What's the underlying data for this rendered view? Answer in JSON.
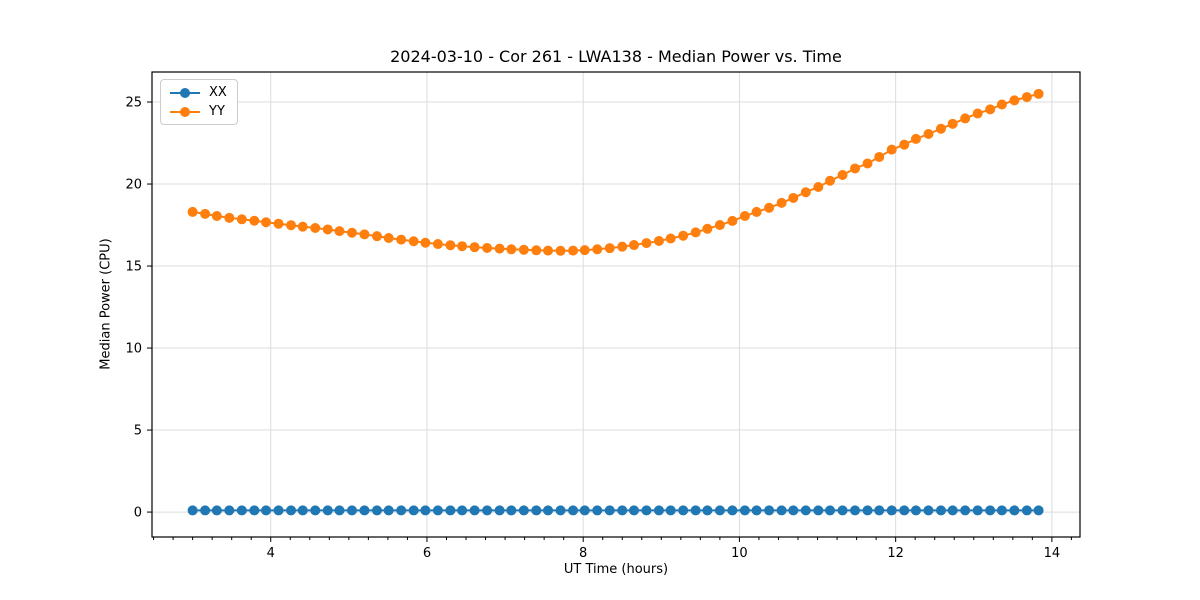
{
  "chart_data": {
    "type": "line",
    "title": "2024-03-10 - Cor 261 - LWA138 - Median Power vs. Time",
    "xlabel": "UT Time (hours)",
    "ylabel": "Median Power (CPU)",
    "legend": {
      "position": "upper left",
      "entries": [
        "XX",
        "YY"
      ]
    },
    "axes": {
      "xlim": [
        2.48,
        14.36
      ],
      "ylim": [
        -1.52,
        26.83
      ],
      "xticks": [
        4,
        6,
        8,
        10,
        12,
        14
      ],
      "yticks": [
        0,
        5,
        10,
        15,
        20,
        25
      ],
      "x_minor_step": 0.25,
      "grid": true
    },
    "x": [
      3.0,
      3.16,
      3.31,
      3.47,
      3.63,
      3.79,
      3.94,
      4.1,
      4.26,
      4.41,
      4.57,
      4.73,
      4.88,
      5.04,
      5.2,
      5.36,
      5.51,
      5.67,
      5.83,
      5.98,
      6.14,
      6.3,
      6.45,
      6.61,
      6.77,
      6.93,
      7.08,
      7.24,
      7.4,
      7.55,
      7.71,
      7.87,
      8.02,
      8.18,
      8.34,
      8.5,
      8.65,
      8.81,
      8.97,
      9.12,
      9.28,
      9.44,
      9.59,
      9.75,
      9.91,
      10.07,
      10.22,
      10.38,
      10.54,
      10.69,
      10.85,
      11.01,
      11.16,
      11.32,
      11.48,
      11.64,
      11.79,
      11.95,
      12.11,
      12.26,
      12.42,
      12.58,
      12.73,
      12.89,
      13.05,
      13.21,
      13.36,
      13.52,
      13.68,
      13.83
    ],
    "series": [
      {
        "name": "XX",
        "color": "#1f77b4",
        "values": [
          0.1,
          0.1,
          0.1,
          0.1,
          0.1,
          0.1,
          0.1,
          0.1,
          0.1,
          0.1,
          0.1,
          0.1,
          0.1,
          0.1,
          0.1,
          0.1,
          0.1,
          0.1,
          0.1,
          0.1,
          0.1,
          0.1,
          0.1,
          0.1,
          0.1,
          0.1,
          0.1,
          0.1,
          0.1,
          0.1,
          0.1,
          0.1,
          0.1,
          0.1,
          0.1,
          0.1,
          0.1,
          0.1,
          0.1,
          0.1,
          0.1,
          0.1,
          0.1,
          0.1,
          0.1,
          0.1,
          0.1,
          0.1,
          0.1,
          0.1,
          0.1,
          0.1,
          0.1,
          0.1,
          0.1,
          0.1,
          0.1,
          0.1,
          0.1,
          0.1,
          0.1,
          0.1,
          0.1,
          0.1,
          0.1,
          0.1,
          0.1,
          0.1,
          0.1,
          0.1
        ]
      },
      {
        "name": "YY",
        "color": "#ff7f0e",
        "values": [
          18.3,
          18.18,
          18.05,
          17.94,
          17.85,
          17.76,
          17.67,
          17.58,
          17.49,
          17.4,
          17.32,
          17.23,
          17.13,
          17.03,
          16.93,
          16.82,
          16.71,
          16.61,
          16.51,
          16.42,
          16.34,
          16.27,
          16.21,
          16.15,
          16.1,
          16.06,
          16.02,
          15.99,
          15.96,
          15.94,
          15.93,
          15.94,
          15.97,
          16.02,
          16.09,
          16.18,
          16.28,
          16.4,
          16.53,
          16.68,
          16.85,
          17.05,
          17.27,
          17.5,
          17.75,
          18.05,
          18.3,
          18.55,
          18.85,
          19.15,
          19.5,
          19.82,
          20.2,
          20.55,
          20.95,
          21.25,
          21.65,
          22.1,
          22.4,
          22.75,
          23.05,
          23.37,
          23.67,
          24.0,
          24.3,
          24.55,
          24.85,
          25.1,
          25.3,
          25.5
        ]
      }
    ],
    "style": {
      "grid_color": "#dcdcdc",
      "spine_color": "#000000",
      "marker_radius": 5,
      "line_width": 2
    }
  }
}
